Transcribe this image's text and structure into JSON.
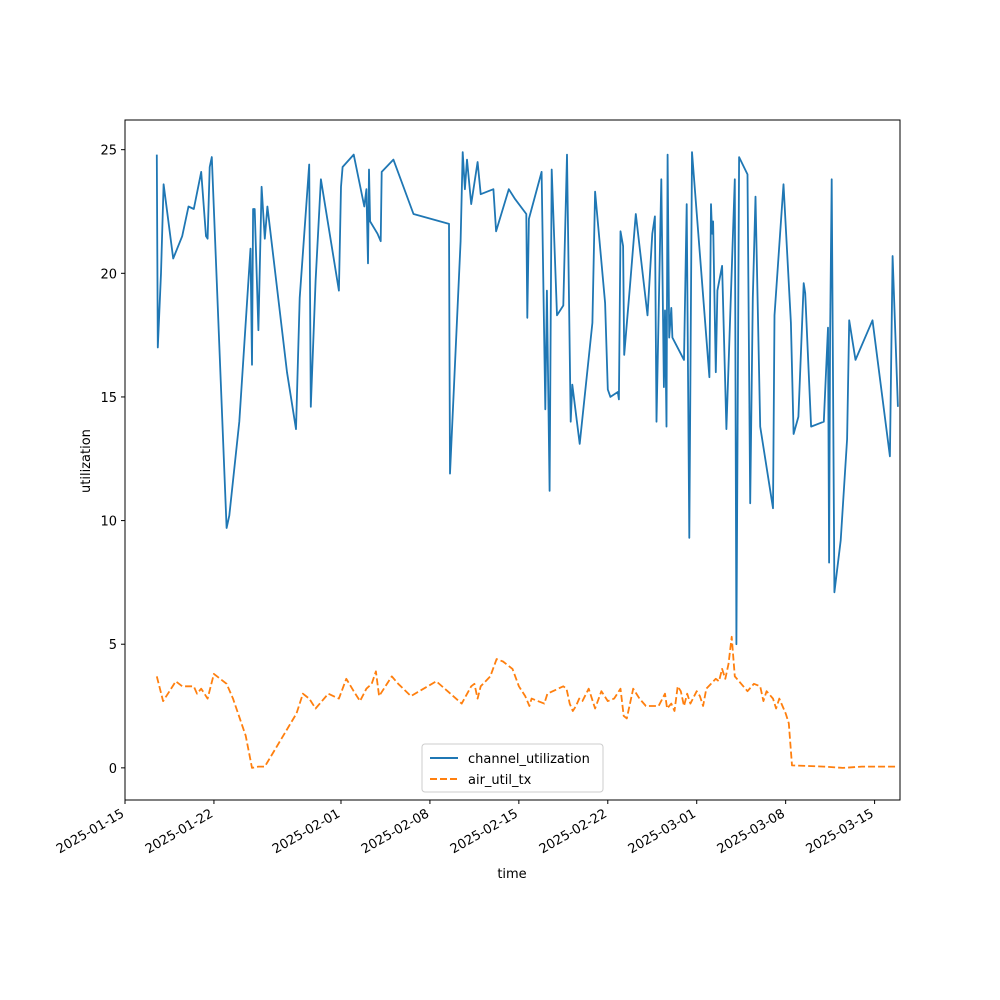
{
  "chart_data": {
    "type": "line",
    "title": "",
    "xlabel": "time",
    "ylabel": "utilization",
    "x_ticks": [
      "2025-01-15",
      "2025-01-22",
      "2025-02-01",
      "2025-02-08",
      "2025-02-15",
      "2025-02-22",
      "2025-03-01",
      "2025-03-08",
      "2025-03-15"
    ],
    "y_ticks": [
      0,
      5,
      10,
      15,
      20,
      25
    ],
    "xlim": [
      "2025-01-15",
      "2025-03-17"
    ],
    "ylim": [
      -1.3,
      26.2
    ],
    "grid": false,
    "legend_position": "lower-center",
    "series": [
      {
        "name": "channel_utilization",
        "color": "#1f77b4",
        "style": "solid",
        "points": [
          [
            "2025-01-17T12:00",
            24.8
          ],
          [
            "2025-01-17T14:00",
            17.0
          ],
          [
            "2025-01-17T20:00",
            20.0
          ],
          [
            "2025-01-18T01:00",
            23.6
          ],
          [
            "2025-01-18T19:00",
            20.6
          ],
          [
            "2025-01-19T12:00",
            21.5
          ],
          [
            "2025-01-20T00:00",
            22.7
          ],
          [
            "2025-01-20T10:00",
            22.6
          ],
          [
            "2025-01-21T00:00",
            24.1
          ],
          [
            "2025-01-21T09:00",
            21.5
          ],
          [
            "2025-01-21T12:00",
            21.4
          ],
          [
            "2025-01-21T16:00",
            24.3
          ],
          [
            "2025-01-21T20:00",
            24.7
          ],
          [
            "2025-01-23T00:00",
            9.7
          ],
          [
            "2025-01-23T05:00",
            10.2
          ],
          [
            "2025-01-24T00:00",
            14.0
          ],
          [
            "2025-01-24T21:00",
            21.0
          ],
          [
            "2025-01-25T00:00",
            16.3
          ],
          [
            "2025-01-25T02:00",
            22.6
          ],
          [
            "2025-01-25T05:00",
            22.6
          ],
          [
            "2025-01-25T12:00",
            17.7
          ],
          [
            "2025-01-25T18:00",
            23.5
          ],
          [
            "2025-01-26T00:00",
            21.4
          ],
          [
            "2025-01-26T05:00",
            22.7
          ],
          [
            "2025-01-27T18:00",
            16.0
          ],
          [
            "2025-01-28T11:00",
            13.7
          ],
          [
            "2025-01-28T18:00",
            19.0
          ],
          [
            "2025-01-29T12:00",
            24.4
          ],
          [
            "2025-01-29T15:00",
            14.6
          ],
          [
            "2025-01-30T00:00",
            19.7
          ],
          [
            "2025-01-30T10:00",
            23.8
          ],
          [
            "2025-01-31T20:00",
            19.3
          ],
          [
            "2025-02-01T00:00",
            23.5
          ],
          [
            "2025-02-01T03:00",
            24.3
          ],
          [
            "2025-02-02T00:00",
            24.8
          ],
          [
            "2025-02-02T20:00",
            22.7
          ],
          [
            "2025-02-03T00:00",
            23.4
          ],
          [
            "2025-02-03T03:00",
            20.4
          ],
          [
            "2025-02-03T05:00",
            24.2
          ],
          [
            "2025-02-03T07:00",
            22.1
          ],
          [
            "2025-02-03T21:00",
            21.6
          ],
          [
            "2025-02-04T03:00",
            21.3
          ],
          [
            "2025-02-04T05:00",
            24.1
          ],
          [
            "2025-02-05T03:00",
            24.6
          ],
          [
            "2025-02-06T17:00",
            22.4
          ],
          [
            "2025-02-09T12:00",
            22.0
          ],
          [
            "2025-02-09T14:00",
            11.9
          ],
          [
            "2025-02-10T10:00",
            21.3
          ],
          [
            "2025-02-10T14:00",
            24.9
          ],
          [
            "2025-02-10T18:00",
            23.4
          ],
          [
            "2025-02-10T22:00",
            24.6
          ],
          [
            "2025-02-11T06:00",
            22.8
          ],
          [
            "2025-02-11T18:00",
            24.5
          ],
          [
            "2025-02-12T00:00",
            23.2
          ],
          [
            "2025-02-13T00:00",
            23.4
          ],
          [
            "2025-02-13T05:00",
            21.7
          ],
          [
            "2025-02-14T05:00",
            23.4
          ],
          [
            "2025-02-14T17:00",
            23.0
          ],
          [
            "2025-02-15T14:00",
            22.4
          ],
          [
            "2025-02-15T16:00",
            18.2
          ],
          [
            "2025-02-15T19:00",
            22.2
          ],
          [
            "2025-02-16T19:00",
            24.1
          ],
          [
            "2025-02-17T02:00",
            14.5
          ],
          [
            "2025-02-17T05:00",
            19.3
          ],
          [
            "2025-02-17T10:00",
            11.2
          ],
          [
            "2025-02-17T14:00",
            24.2
          ],
          [
            "2025-02-18T00:00",
            18.3
          ],
          [
            "2025-02-18T12:00",
            18.7
          ],
          [
            "2025-02-18T19:00",
            24.8
          ],
          [
            "2025-02-19T02:00",
            14.0
          ],
          [
            "2025-02-19T05:00",
            15.5
          ],
          [
            "2025-02-19T19:00",
            13.1
          ],
          [
            "2025-02-20T19:00",
            18.0
          ],
          [
            "2025-02-21T00:00",
            23.3
          ],
          [
            "2025-02-21T19:00",
            18.8
          ],
          [
            "2025-02-22T00:00",
            15.3
          ],
          [
            "2025-02-22T05:00",
            15.0
          ],
          [
            "2025-02-22T19:00",
            15.2
          ],
          [
            "2025-02-22T21:00",
            14.9
          ],
          [
            "2025-02-23T00:00",
            21.7
          ],
          [
            "2025-02-23T05:00",
            21.1
          ],
          [
            "2025-02-23T07:00",
            16.7
          ],
          [
            "2025-02-23T18:00",
            19.5
          ],
          [
            "2025-02-24T05:00",
            22.4
          ],
          [
            "2025-02-25T03:00",
            18.3
          ],
          [
            "2025-02-25T12:00",
            21.6
          ],
          [
            "2025-02-25T17:00",
            22.3
          ],
          [
            "2025-02-25T20:00",
            14.0
          ],
          [
            "2025-02-26T05:00",
            23.8
          ],
          [
            "2025-02-26T10:00",
            15.4
          ],
          [
            "2025-02-26T12:00",
            18.5
          ],
          [
            "2025-02-26T15:00",
            13.8
          ],
          [
            "2025-02-26T17:00",
            24.8
          ],
          [
            "2025-02-26T20:00",
            17.4
          ],
          [
            "2025-02-27T00:00",
            18.6
          ],
          [
            "2025-02-27T02:00",
            17.4
          ],
          [
            "2025-02-28T00:00",
            16.5
          ],
          [
            "2025-02-28T05:00",
            22.8
          ],
          [
            "2025-02-28T10:00",
            9.3
          ],
          [
            "2025-02-28T15:00",
            24.9
          ],
          [
            "2025-03-02T00:00",
            15.8
          ],
          [
            "2025-03-02T03:00",
            22.8
          ],
          [
            "2025-03-02T05:00",
            21.6
          ],
          [
            "2025-03-02T07:00",
            22.1
          ],
          [
            "2025-03-02T12:00",
            16.0
          ],
          [
            "2025-03-02T15:00",
            19.3
          ],
          [
            "2025-03-03T00:00",
            20.3
          ],
          [
            "2025-03-03T08:00",
            13.7
          ],
          [
            "2025-03-04T00:00",
            23.8
          ],
          [
            "2025-03-04T03:00",
            5.0
          ],
          [
            "2025-03-04T08:00",
            24.7
          ],
          [
            "2025-03-05T00:00",
            24.0
          ],
          [
            "2025-03-05T05:00",
            10.7
          ],
          [
            "2025-03-05T10:00",
            19.0
          ],
          [
            "2025-03-05T15:00",
            23.1
          ],
          [
            "2025-03-06T00:00",
            13.8
          ],
          [
            "2025-03-07T00:00",
            10.5
          ],
          [
            "2025-03-07T03:00",
            18.3
          ],
          [
            "2025-03-07T20:00",
            23.6
          ],
          [
            "2025-03-08T10:00",
            18.0
          ],
          [
            "2025-03-08T15:00",
            13.5
          ],
          [
            "2025-03-09T00:00",
            14.2
          ],
          [
            "2025-03-09T10:00",
            19.6
          ],
          [
            "2025-03-09T13:00",
            19.2
          ],
          [
            "2025-03-10T00:00",
            13.8
          ],
          [
            "2025-03-11T00:00",
            14.0
          ],
          [
            "2025-03-11T08:00",
            17.8
          ],
          [
            "2025-03-11T10:00",
            8.3
          ],
          [
            "2025-03-11T12:00",
            17.5
          ],
          [
            "2025-03-11T15:00",
            23.8
          ],
          [
            "2025-03-11T20:00",
            7.1
          ],
          [
            "2025-03-12T08:00",
            9.2
          ],
          [
            "2025-03-12T20:00",
            13.3
          ],
          [
            "2025-03-13T00:00",
            18.1
          ],
          [
            "2025-03-13T12:00",
            16.5
          ],
          [
            "2025-03-14T20:00",
            18.1
          ],
          [
            "2025-03-16T05:00",
            12.6
          ],
          [
            "2025-03-16T10:00",
            20.7
          ],
          [
            "2025-03-16T20:00",
            14.6
          ]
        ]
      },
      {
        "name": "air_util_tx",
        "color": "#ff7f0e",
        "style": "dashed",
        "points": [
          [
            "2025-01-17T12:00",
            3.7
          ],
          [
            "2025-01-18T00:00",
            2.7
          ],
          [
            "2025-01-18T12:00",
            3.1
          ],
          [
            "2025-01-19T00:00",
            3.5
          ],
          [
            "2025-01-19T12:00",
            3.3
          ],
          [
            "2025-01-20T10:00",
            3.3
          ],
          [
            "2025-01-20T16:00",
            3.0
          ],
          [
            "2025-01-21T00:00",
            3.2
          ],
          [
            "2025-01-21T12:00",
            2.8
          ],
          [
            "2025-01-22T00:00",
            3.8
          ],
          [
            "2025-01-23T00:00",
            3.4
          ],
          [
            "2025-01-23T12:00",
            2.8
          ],
          [
            "2025-01-24T12:00",
            1.3
          ],
          [
            "2025-01-25T00:00",
            0.0
          ],
          [
            "2025-01-25T12:00",
            0.05
          ],
          [
            "2025-01-26T00:00",
            0.05
          ],
          [
            "2025-01-28T12:00",
            2.2
          ],
          [
            "2025-01-29T00:00",
            3.0
          ],
          [
            "2025-01-29T12:00",
            2.8
          ],
          [
            "2025-01-30T00:00",
            2.4
          ],
          [
            "2025-01-31T00:00",
            3.0
          ],
          [
            "2025-01-31T20:00",
            2.8
          ],
          [
            "2025-02-01T10:00",
            3.6
          ],
          [
            "2025-02-02T00:00",
            3.1
          ],
          [
            "2025-02-02T12:00",
            2.7
          ],
          [
            "2025-02-03T00:00",
            3.2
          ],
          [
            "2025-02-03T10:00",
            3.4
          ],
          [
            "2025-02-03T18:00",
            3.9
          ],
          [
            "2025-02-04T00:00",
            2.9
          ],
          [
            "2025-02-05T00:00",
            3.7
          ],
          [
            "2025-02-05T12:00",
            3.4
          ],
          [
            "2025-02-06T12:00",
            2.9
          ],
          [
            "2025-02-08T12:00",
            3.5
          ],
          [
            "2025-02-10T12:00",
            2.6
          ],
          [
            "2025-02-11T06:00",
            3.3
          ],
          [
            "2025-02-11T12:00",
            3.4
          ],
          [
            "2025-02-11T18:00",
            2.8
          ],
          [
            "2025-02-12T00:00",
            3.3
          ],
          [
            "2025-02-12T18:00",
            3.7
          ],
          [
            "2025-02-13T06:00",
            4.4
          ],
          [
            "2025-02-13T18:00",
            4.3
          ],
          [
            "2025-02-14T12:00",
            4.0
          ],
          [
            "2025-02-15T00:00",
            3.3
          ],
          [
            "2025-02-15T12:00",
            2.9
          ],
          [
            "2025-02-15T20:00",
            2.5
          ],
          [
            "2025-02-16T00:00",
            2.8
          ],
          [
            "2025-02-17T00:00",
            2.6
          ],
          [
            "2025-02-17T06:00",
            3.0
          ],
          [
            "2025-02-18T12:00",
            3.3
          ],
          [
            "2025-02-18T18:00",
            3.2
          ],
          [
            "2025-02-19T00:00",
            2.6
          ],
          [
            "2025-02-19T06:00",
            2.3
          ],
          [
            "2025-02-19T12:00",
            2.5
          ],
          [
            "2025-02-19T18:00",
            2.8
          ],
          [
            "2025-02-20T00:00",
            2.7
          ],
          [
            "2025-02-20T12:00",
            3.2
          ],
          [
            "2025-02-21T00:00",
            2.4
          ],
          [
            "2025-02-21T12:00",
            3.1
          ],
          [
            "2025-02-22T00:00",
            2.7
          ],
          [
            "2025-02-22T12:00",
            2.8
          ],
          [
            "2025-02-23T00:00",
            3.2
          ],
          [
            "2025-02-23T06:00",
            2.1
          ],
          [
            "2025-02-23T12:00",
            2.0
          ],
          [
            "2025-02-24T00:00",
            3.2
          ],
          [
            "2025-02-24T12:00",
            2.8
          ],
          [
            "2025-02-25T00:00",
            2.5
          ],
          [
            "2025-02-26T00:00",
            2.5
          ],
          [
            "2025-02-26T12:00",
            3.0
          ],
          [
            "2025-02-26T16:00",
            2.4
          ],
          [
            "2025-02-27T00:00",
            2.6
          ],
          [
            "2025-02-27T06:00",
            2.3
          ],
          [
            "2025-02-27T12:00",
            3.3
          ],
          [
            "2025-02-27T18:00",
            3.1
          ],
          [
            "2025-02-28T00:00",
            2.5
          ],
          [
            "2025-02-28T06:00",
            3.0
          ],
          [
            "2025-02-28T12:00",
            2.6
          ],
          [
            "2025-03-01T00:00",
            3.1
          ],
          [
            "2025-03-01T06:00",
            2.9
          ],
          [
            "2025-03-01T12:00",
            2.5
          ],
          [
            "2025-03-01T18:00",
            3.2
          ],
          [
            "2025-03-02T12:00",
            3.6
          ],
          [
            "2025-03-02T18:00",
            3.5
          ],
          [
            "2025-03-03T00:00",
            4.0
          ],
          [
            "2025-03-03T06:00",
            3.6
          ],
          [
            "2025-03-03T12:00",
            4.2
          ],
          [
            "2025-03-03T18:00",
            5.3
          ],
          [
            "2025-03-04T00:00",
            3.7
          ],
          [
            "2025-03-04T12:00",
            3.4
          ],
          [
            "2025-03-05T00:00",
            3.1
          ],
          [
            "2025-03-05T12:00",
            3.4
          ],
          [
            "2025-03-06T00:00",
            3.3
          ],
          [
            "2025-03-06T06:00",
            2.7
          ],
          [
            "2025-03-06T12:00",
            3.1
          ],
          [
            "2025-03-07T00:00",
            2.8
          ],
          [
            "2025-03-07T06:00",
            2.4
          ],
          [
            "2025-03-07T12:00",
            2.8
          ],
          [
            "2025-03-08T00:00",
            2.2
          ],
          [
            "2025-03-08T06:00",
            1.8
          ],
          [
            "2025-03-08T12:00",
            0.1
          ],
          [
            "2025-03-11T00:00",
            0.05
          ],
          [
            "2025-03-12T12:00",
            0.0
          ],
          [
            "2025-03-14T00:00",
            0.05
          ],
          [
            "2025-03-16T20:00",
            0.05
          ]
        ]
      }
    ]
  }
}
